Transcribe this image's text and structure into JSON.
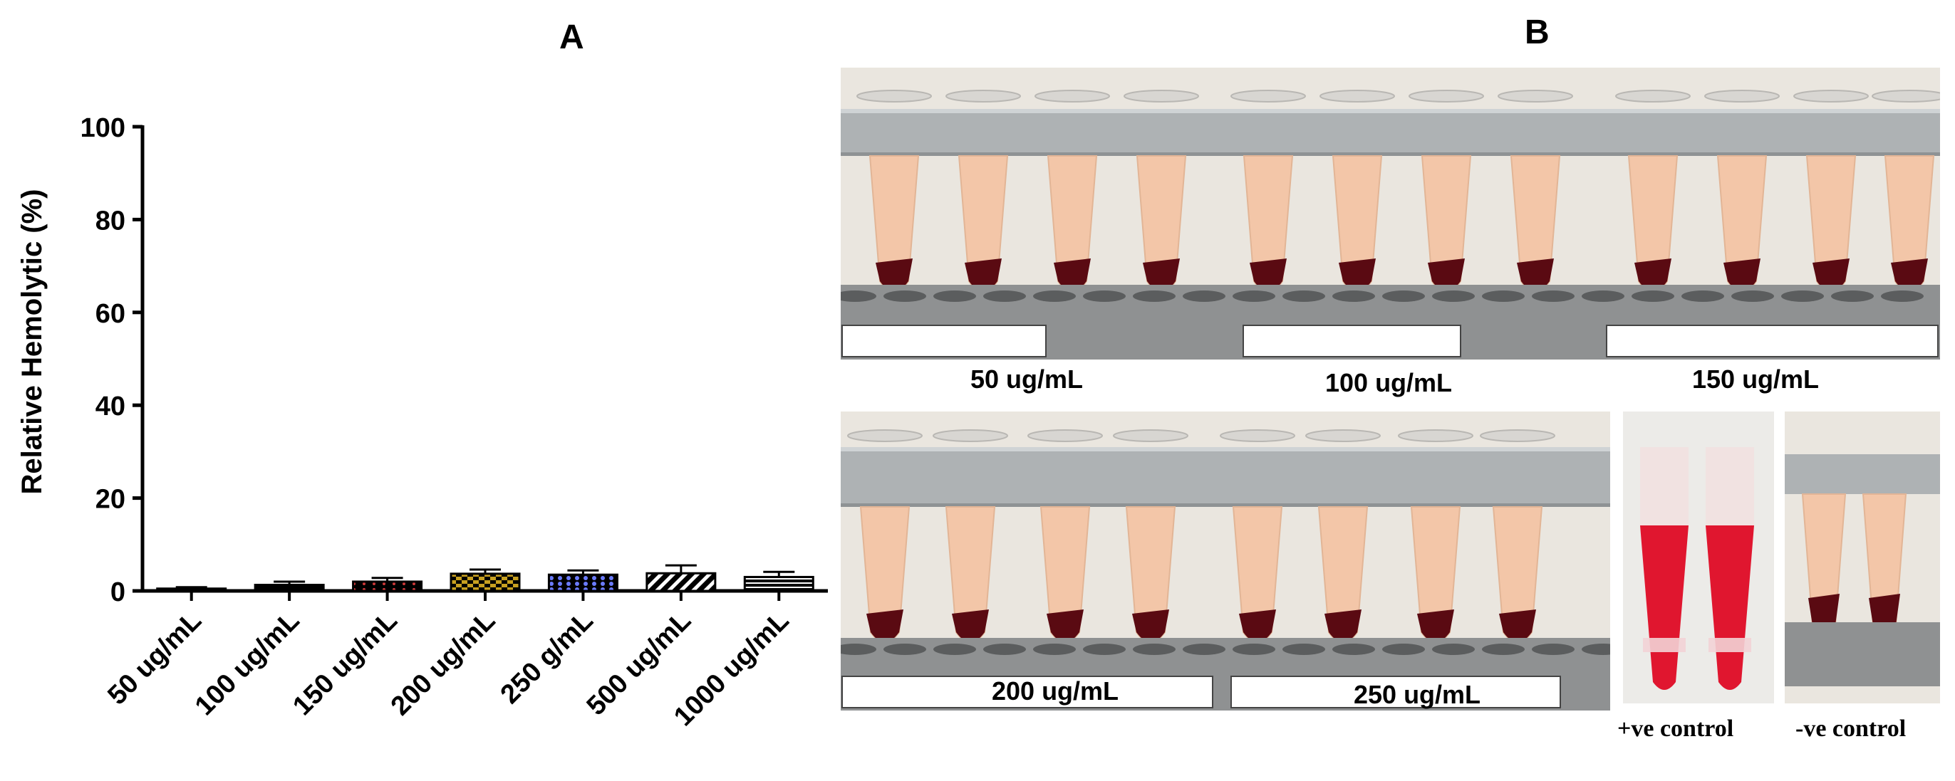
{
  "panels": {
    "a": "A",
    "b": "B"
  },
  "chart_data": {
    "type": "bar",
    "ylabel": "Relative Hemolytic (%)",
    "xlabel": "",
    "ylim": [
      0,
      100
    ],
    "yticks": [
      0,
      20,
      40,
      60,
      80,
      100
    ],
    "categories": [
      "50 ug/mL",
      "100 ug/mL",
      "150 ug/mL",
      "200 ug/mL",
      "250 g/mL",
      "500 ug/mL",
      "1000 ug/mL"
    ],
    "values": [
      0.5,
      1.3,
      2.0,
      3.7,
      3.5,
      3.8,
      3.0
    ],
    "errors": [
      0.3,
      0.7,
      0.8,
      0.9,
      0.9,
      1.7,
      1.1
    ],
    "patterns": [
      "solid",
      "solid",
      "red-dots",
      "gold-checker",
      "blue-dots",
      "diagonal-hatch",
      "horizontal-lines"
    ],
    "grid": false,
    "legend": "none"
  },
  "photos": {
    "top_labels": [
      "50 ug/mL",
      "100 ug/mL",
      "150 ug/mL"
    ],
    "bottom_labels": [
      "200 ug/mL",
      "250 ug/mL"
    ],
    "positive_control": "+ve control",
    "negative_control": "-ve control",
    "colors": {
      "background": "#eae6df",
      "rack": "#aeb2b4",
      "supernatant": "#f3c6a8",
      "pellet": "#5a0a12",
      "lysed_blood": "#e0162f"
    }
  }
}
